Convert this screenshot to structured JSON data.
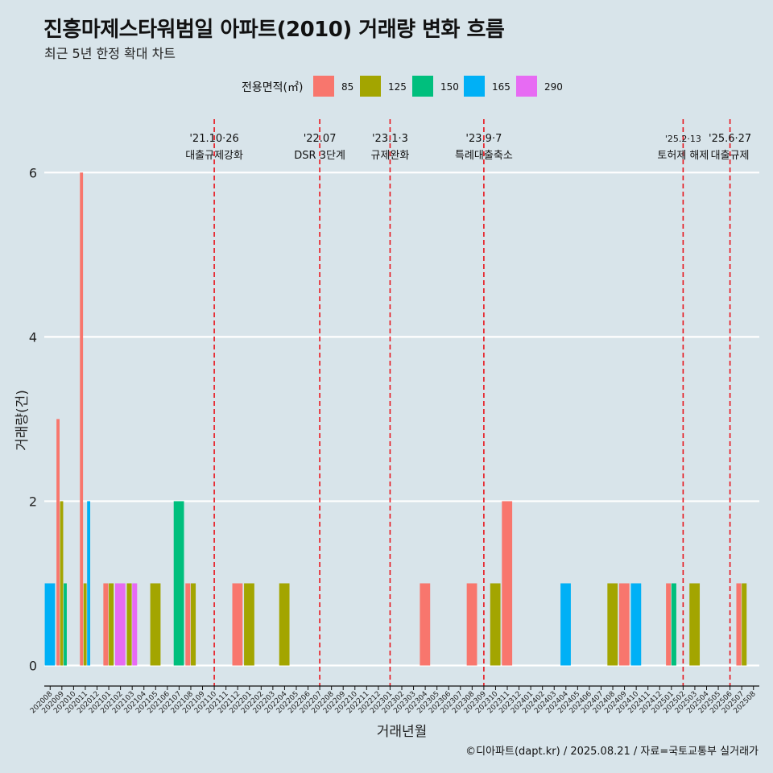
{
  "title": "진흥마제스타워범일 아파트(2010) 거래량 변화 흐름",
  "subtitle": "최근 5년 한정 확대 차트",
  "caption": "©디아파트(dapt.kr) / 2025.08.21 / 자료=국토교통부 실거래가",
  "colors": {
    "background": "#d8e4ea",
    "grid": "#ffffff",
    "event_line": "#e8141c"
  },
  "chart_data": {
    "type": "bar",
    "xlabel": "거래년월",
    "ylabel": "거래량(건)",
    "ylim": [
      -0.25,
      6.65
    ],
    "yticks": [
      0,
      2,
      4,
      6
    ],
    "grid": true,
    "legend": {
      "title": "전용면적(㎡)",
      "position": "top"
    },
    "categories": [
      "202008",
      "202009",
      "202010",
      "202011",
      "202012",
      "202101",
      "202102",
      "202103",
      "202104",
      "202105",
      "202106",
      "202107",
      "202108",
      "202109",
      "202110",
      "202111",
      "202112",
      "202201",
      "202202",
      "202203",
      "202204",
      "202205",
      "202206",
      "202207",
      "202208",
      "202209",
      "202210",
      "202211",
      "202212",
      "202301",
      "202302",
      "202303",
      "202304",
      "202305",
      "202306",
      "202307",
      "202308",
      "202309",
      "202310",
      "202311",
      "202312",
      "202401",
      "202402",
      "202403",
      "202404",
      "202405",
      "202406",
      "202407",
      "202408",
      "202409",
      "202410",
      "202411",
      "202412",
      "202501",
      "202502",
      "202503",
      "202504",
      "202505",
      "202506",
      "202507",
      "202508"
    ],
    "series": [
      {
        "name": "85",
        "color": "#f8766d",
        "points": [
          [
            "202009",
            3
          ],
          [
            "202011",
            6
          ],
          [
            "202101",
            1
          ],
          [
            "202108",
            1
          ],
          [
            "202112",
            1
          ],
          [
            "202304",
            1
          ],
          [
            "202308",
            1
          ],
          [
            "202311",
            2
          ],
          [
            "202409",
            1
          ],
          [
            "202501",
            1
          ],
          [
            "202507",
            1
          ]
        ]
      },
      {
        "name": "125",
        "color": "#a3a500",
        "points": [
          [
            "202009",
            2
          ],
          [
            "202011",
            1
          ],
          [
            "202101",
            1
          ],
          [
            "202103",
            1
          ],
          [
            "202105",
            1
          ],
          [
            "202108",
            1
          ],
          [
            "202201",
            1
          ],
          [
            "202204",
            1
          ],
          [
            "202310",
            1
          ],
          [
            "202408",
            1
          ],
          [
            "202503",
            1
          ],
          [
            "202507",
            1
          ]
        ]
      },
      {
        "name": "150",
        "color": "#00bf7d",
        "points": [
          [
            "202009",
            1
          ],
          [
            "202107",
            2
          ],
          [
            "202501",
            1
          ]
        ]
      },
      {
        "name": "165",
        "color": "#00b0f6",
        "points": [
          [
            "202008",
            1
          ],
          [
            "202011",
            2
          ],
          [
            "202404",
            1
          ],
          [
            "202410",
            1
          ]
        ]
      },
      {
        "name": "290",
        "color": "#e76bf3",
        "points": [
          [
            "202102",
            1
          ],
          [
            "202103",
            1
          ]
        ]
      }
    ],
    "annotations": [
      {
        "x": "202110",
        "date": "'21.10·26",
        "label": "대출규제강화"
      },
      {
        "x": "202207",
        "date": "'22.07",
        "label": "DSR 3단계"
      },
      {
        "x": "202301",
        "date": "'23.1·3",
        "label": "규제완화"
      },
      {
        "x": "202309",
        "date": "'23.9·7",
        "label": "특례대출축소"
      },
      {
        "x": "202502",
        "date": "'25.2·13",
        "label": "토허제 해제"
      },
      {
        "x": "202506",
        "date": "'25.6·27",
        "label": "대출규제"
      }
    ]
  }
}
